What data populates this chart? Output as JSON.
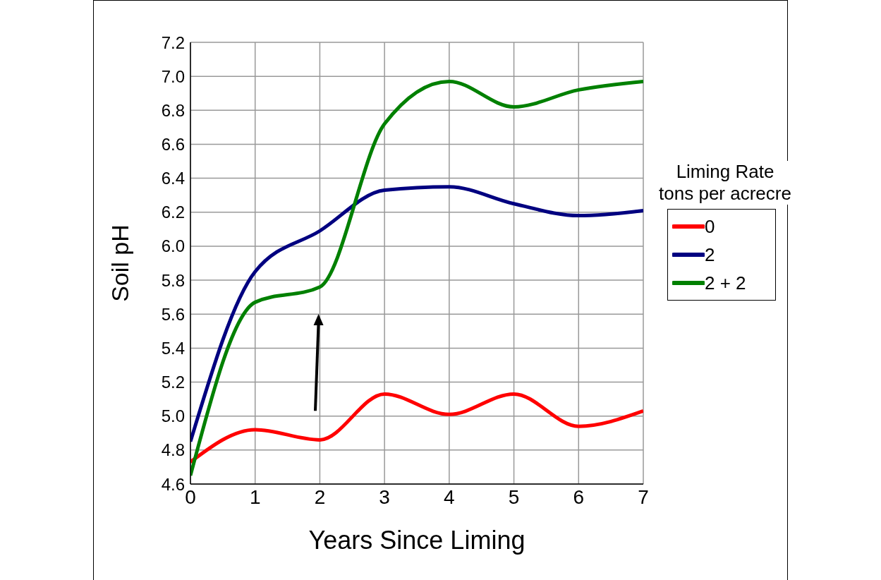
{
  "chart_data": {
    "type": "line",
    "xlabel": "Years Since Liming",
    "ylabel": "Soil pH",
    "legend_title": "Liming Rate\ntons per acrecre",
    "x": [
      0,
      1,
      2,
      3,
      4,
      5,
      6,
      7
    ],
    "series": [
      {
        "name": "0",
        "color": "#ff0000",
        "values": [
          4.73,
          4.92,
          4.86,
          5.13,
          5.01,
          5.13,
          4.94,
          5.03
        ]
      },
      {
        "name": "2",
        "color": "#000080",
        "values": [
          4.85,
          5.85,
          6.09,
          6.33,
          6.35,
          6.25,
          6.18,
          6.21
        ]
      },
      {
        "name": "2 + 2",
        "color": "#008000",
        "values": [
          4.65,
          5.67,
          5.76,
          6.72,
          6.97,
          6.82,
          6.92,
          6.97
        ]
      }
    ],
    "xlim": [
      0,
      7
    ],
    "xticks": [
      0,
      1,
      2,
      3,
      4,
      5,
      6,
      7
    ],
    "ylim": [
      4.6,
      7.2
    ],
    "yticks": [
      4.6,
      4.8,
      {
        "value": 5,
        "label": "5.0"
      },
      5.2,
      5.4,
      5.6,
      5.8,
      {
        "value": 6,
        "label": "6.0"
      },
      6.2,
      6.4,
      6.6,
      6.8,
      {
        "value": 7,
        "label": "7.0"
      },
      7.2
    ],
    "grid": true,
    "legend": "right",
    "marker": "none",
    "line_style": "solid"
  }
}
